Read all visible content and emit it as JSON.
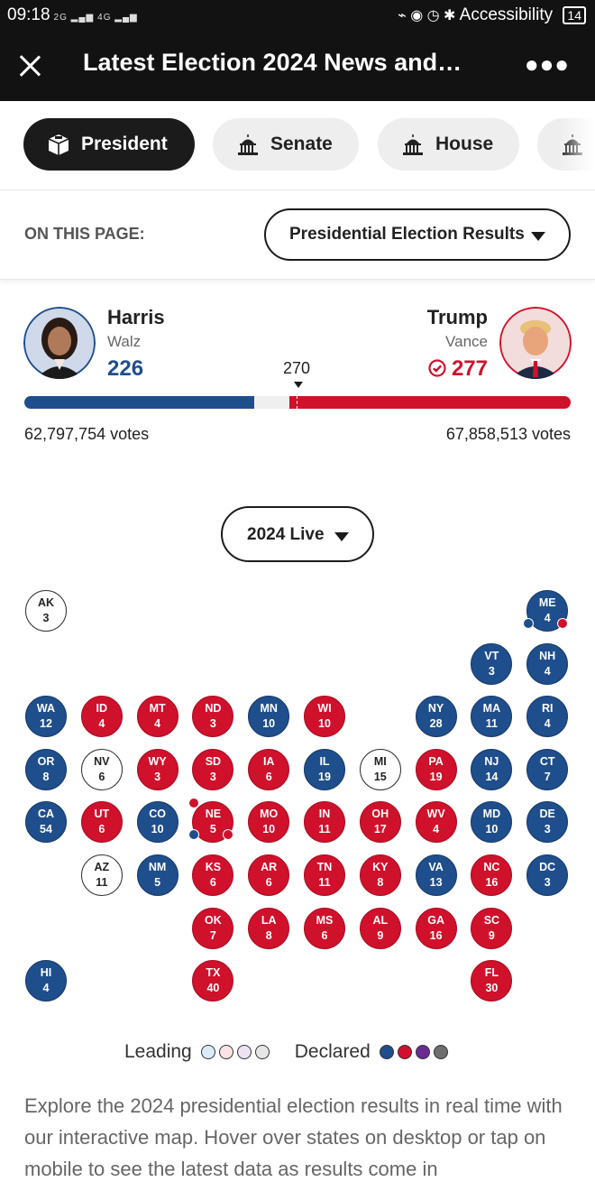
{
  "status_bar": {
    "time": "09:18",
    "signal_1": "2G",
    "signal_2": "4G",
    "right_text": "Accessibility",
    "battery": "14"
  },
  "app_bar": {
    "title": "Latest Election 2024 News and…",
    "close_icon": "close-icon",
    "more_icon": "more-icon"
  },
  "tabs": [
    {
      "label": "President",
      "icon": "ballot-box-icon",
      "active": true
    },
    {
      "label": "Senate",
      "icon": "capitol-icon",
      "active": false
    },
    {
      "label": "House",
      "icon": "capitol-icon",
      "active": false
    }
  ],
  "on_this_page": {
    "label": "ON THIS PAGE:",
    "selected": "Presidential Election Results"
  },
  "results": {
    "dem": {
      "name": "Harris",
      "vp": "Walz",
      "ev": "226",
      "votes": "62,797,754 votes",
      "color": "#1f4e8c"
    },
    "rep": {
      "name": "Trump",
      "vp": "Vance",
      "ev": "277",
      "votes": "67,858,513 votes",
      "color": "#d0112b",
      "winner": true
    },
    "threshold": "270",
    "total_ev": 538
  },
  "year_select": {
    "selected": "2024 Live"
  },
  "states": [
    {
      "abbr": "AK",
      "ev": "3",
      "status": "U"
    },
    {
      "abbr": "ME",
      "ev": "4",
      "status": "D",
      "split": true
    },
    {
      "abbr": "VT",
      "ev": "3",
      "status": "D"
    },
    {
      "abbr": "NH",
      "ev": "4",
      "status": "D"
    },
    {
      "abbr": "WA",
      "ev": "12",
      "status": "D"
    },
    {
      "abbr": "ID",
      "ev": "4",
      "status": "R"
    },
    {
      "abbr": "MT",
      "ev": "4",
      "status": "R"
    },
    {
      "abbr": "ND",
      "ev": "3",
      "status": "R"
    },
    {
      "abbr": "MN",
      "ev": "10",
      "status": "D"
    },
    {
      "abbr": "WI",
      "ev": "10",
      "status": "R"
    },
    {
      "abbr": "NY",
      "ev": "28",
      "status": "D"
    },
    {
      "abbr": "MA",
      "ev": "11",
      "status": "D"
    },
    {
      "abbr": "RI",
      "ev": "4",
      "status": "D"
    },
    {
      "abbr": "OR",
      "ev": "8",
      "status": "D"
    },
    {
      "abbr": "NV",
      "ev": "6",
      "status": "U"
    },
    {
      "abbr": "WY",
      "ev": "3",
      "status": "R"
    },
    {
      "abbr": "SD",
      "ev": "3",
      "status": "R"
    },
    {
      "abbr": "IA",
      "ev": "6",
      "status": "R"
    },
    {
      "abbr": "IL",
      "ev": "19",
      "status": "D"
    },
    {
      "abbr": "MI",
      "ev": "15",
      "status": "U"
    },
    {
      "abbr": "PA",
      "ev": "19",
      "status": "R"
    },
    {
      "abbr": "NJ",
      "ev": "14",
      "status": "D"
    },
    {
      "abbr": "CT",
      "ev": "7",
      "status": "D"
    },
    {
      "abbr": "CA",
      "ev": "54",
      "status": "D"
    },
    {
      "abbr": "UT",
      "ev": "6",
      "status": "R"
    },
    {
      "abbr": "CO",
      "ev": "10",
      "status": "D"
    },
    {
      "abbr": "NE",
      "ev": "5",
      "status": "R",
      "split": true
    },
    {
      "abbr": "MO",
      "ev": "10",
      "status": "R"
    },
    {
      "abbr": "IN",
      "ev": "11",
      "status": "R"
    },
    {
      "abbr": "OH",
      "ev": "17",
      "status": "R"
    },
    {
      "abbr": "WV",
      "ev": "4",
      "status": "R"
    },
    {
      "abbr": "MD",
      "ev": "10",
      "status": "D"
    },
    {
      "abbr": "DE",
      "ev": "3",
      "status": "D"
    },
    {
      "abbr": "AZ",
      "ev": "11",
      "status": "U"
    },
    {
      "abbr": "NM",
      "ev": "5",
      "status": "D"
    },
    {
      "abbr": "KS",
      "ev": "6",
      "status": "R"
    },
    {
      "abbr": "AR",
      "ev": "6",
      "status": "R"
    },
    {
      "abbr": "TN",
      "ev": "11",
      "status": "R"
    },
    {
      "abbr": "KY",
      "ev": "8",
      "status": "R"
    },
    {
      "abbr": "VA",
      "ev": "13",
      "status": "D"
    },
    {
      "abbr": "NC",
      "ev": "16",
      "status": "R"
    },
    {
      "abbr": "DC",
      "ev": "3",
      "status": "D"
    },
    {
      "abbr": "OK",
      "ev": "7",
      "status": "R"
    },
    {
      "abbr": "LA",
      "ev": "8",
      "status": "R"
    },
    {
      "abbr": "MS",
      "ev": "6",
      "status": "R"
    },
    {
      "abbr": "AL",
      "ev": "9",
      "status": "R"
    },
    {
      "abbr": "GA",
      "ev": "16",
      "status": "R"
    },
    {
      "abbr": "SC",
      "ev": "9",
      "status": "R"
    },
    {
      "abbr": "HI",
      "ev": "4",
      "status": "D"
    },
    {
      "abbr": "TX",
      "ev": "40",
      "status": "R"
    },
    {
      "abbr": "FL",
      "ev": "30",
      "status": "R"
    }
  ],
  "legend": {
    "leading_label": "Leading",
    "declared_label": "Declared",
    "leading_colors": [
      "#dcebf7",
      "#fbe3e3",
      "#ece3f3",
      "#e6e6e6"
    ],
    "declared_colors": [
      "#1f4e8c",
      "#d0112b",
      "#6b2c91",
      "#6e6e6e"
    ]
  },
  "description": "Explore the 2024 presidential election results in real time with our interactive map. Hover over states on desktop or tap on mobile to see the latest data as results come in"
}
